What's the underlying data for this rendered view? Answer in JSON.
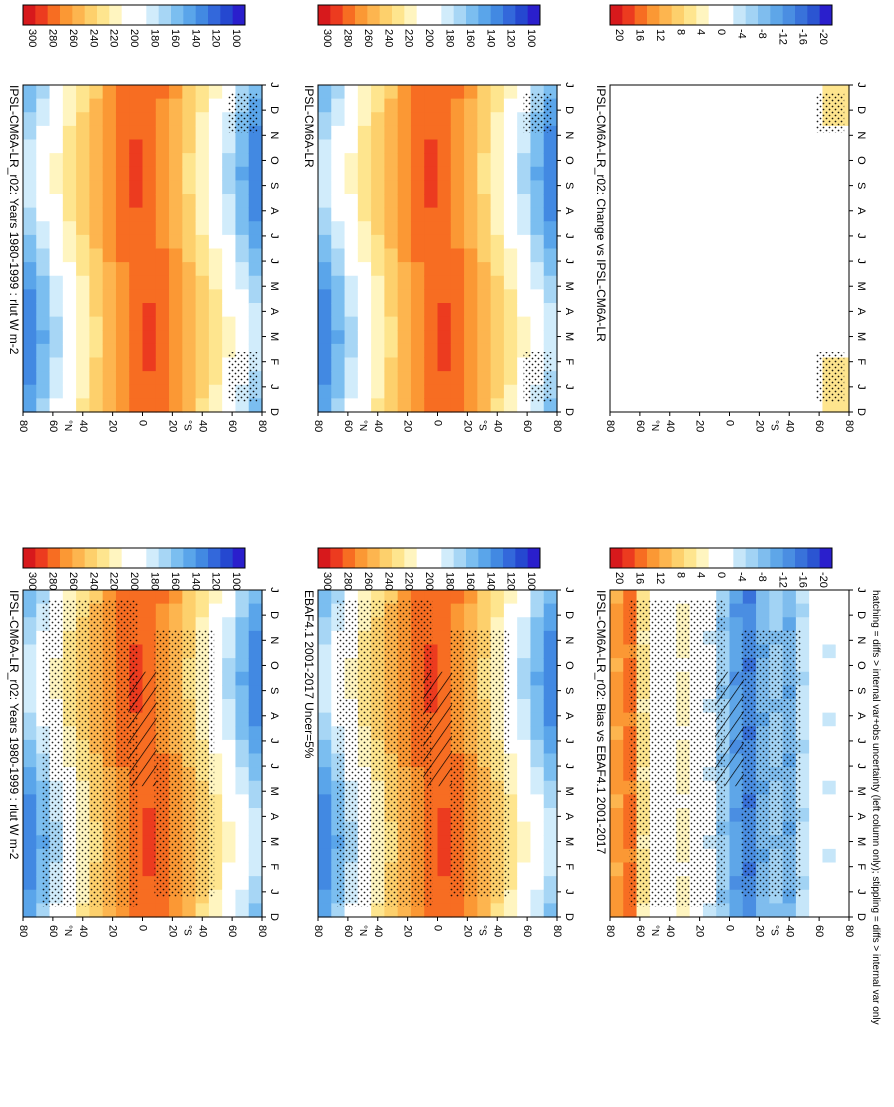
{
  "footer": "hatching = diffs > internal var+obs uncertainty (left column only); stippling = diffs > internal var only",
  "chart_data": [
    {
      "type": "heatmap",
      "title": "IPSL-CM6A-LR_r02: Years 1980-1999 : rlut W m-2",
      "x_ticks": [
        "D",
        "J",
        "F",
        "M",
        "A",
        "M",
        "J",
        "J",
        "A",
        "S",
        "O",
        "N",
        "D",
        "J"
      ],
      "y_ticks": [
        "80",
        "60",
        "40",
        "20",
        "0",
        "20",
        "40",
        "60",
        "80"
      ],
      "y_hemisphere_labels": [
        "°N",
        "°S"
      ],
      "colorbar": [
        "300",
        "280",
        "260",
        "240",
        "220",
        "200",
        "180",
        "160",
        "140",
        "120",
        "100"
      ],
      "palette": "absolute",
      "stippling": "dense",
      "hatching": true
    },
    {
      "type": "heatmap",
      "title": "EBAF4.1 2001-2017 Uncer=5%",
      "x_ticks": [
        "D",
        "J",
        "F",
        "M",
        "A",
        "M",
        "J",
        "J",
        "A",
        "S",
        "O",
        "N",
        "D",
        "J"
      ],
      "y_ticks": [
        "80",
        "60",
        "40",
        "20",
        "0",
        "20",
        "40",
        "60",
        "80"
      ],
      "y_hemisphere_labels": [
        "°N",
        "°S"
      ],
      "colorbar": [
        "300",
        "280",
        "260",
        "240",
        "220",
        "200",
        "180",
        "160",
        "140",
        "120",
        "100"
      ],
      "palette": "absolute",
      "stippling": "dense",
      "hatching": true
    },
    {
      "type": "heatmap",
      "title": "IPSL-CM6A-LR_r02: Bias vs EBAF4.1 2001-2017",
      "x_ticks": [
        "D",
        "J",
        "F",
        "M",
        "A",
        "M",
        "J",
        "J",
        "A",
        "S",
        "O",
        "N",
        "D",
        "J"
      ],
      "y_ticks": [
        "80",
        "60",
        "40",
        "20",
        "0",
        "20",
        "40",
        "60",
        "80"
      ],
      "y_hemisphere_labels": [
        "°N",
        "°S"
      ],
      "colorbar": [
        "20",
        "16",
        "12",
        "8",
        "4",
        "0",
        "-4",
        "-8",
        "-12",
        "-16",
        "-20"
      ],
      "palette": "diff",
      "stippling": "dense",
      "hatching": true
    },
    {
      "type": "heatmap",
      "title": "IPSL-CM6A-LR_r02: Years 1980-1999 : rlut W m-2",
      "x_ticks": [
        "D",
        "J",
        "F",
        "M",
        "A",
        "M",
        "J",
        "J",
        "A",
        "S",
        "O",
        "N",
        "D",
        "J"
      ],
      "y_ticks": [
        "80",
        "60",
        "40",
        "20",
        "0",
        "20",
        "40",
        "60",
        "80"
      ],
      "y_hemisphere_labels": [
        "°N",
        "°S"
      ],
      "colorbar": [
        "300",
        "280",
        "260",
        "240",
        "220",
        "200",
        "180",
        "160",
        "140",
        "120",
        "100"
      ],
      "palette": "absolute",
      "stippling": "sparse",
      "hatching": false
    },
    {
      "type": "heatmap",
      "title": "IPSL-CM6A-LR",
      "x_ticks": [
        "D",
        "J",
        "F",
        "M",
        "A",
        "M",
        "J",
        "J",
        "A",
        "S",
        "O",
        "N",
        "D",
        "J"
      ],
      "y_ticks": [
        "80",
        "60",
        "40",
        "20",
        "0",
        "20",
        "40",
        "60",
        "80"
      ],
      "y_hemisphere_labels": [
        "°N",
        "°S"
      ],
      "colorbar": [
        "300",
        "280",
        "260",
        "240",
        "220",
        "200",
        "180",
        "160",
        "140",
        "120",
        "100"
      ],
      "palette": "absolute",
      "stippling": "sparse",
      "hatching": false
    },
    {
      "type": "heatmap",
      "title": "IPSL-CM6A-LR_r02: Change vs IPSL-CM6A-LR",
      "x_ticks": [
        "D",
        "J",
        "F",
        "M",
        "A",
        "M",
        "J",
        "J",
        "A",
        "S",
        "O",
        "N",
        "D",
        "J"
      ],
      "y_ticks": [
        "80",
        "60",
        "40",
        "20",
        "0",
        "20",
        "40",
        "60",
        "80"
      ],
      "y_hemisphere_labels": [
        "°N",
        "°S"
      ],
      "colorbar": [
        "20",
        "16",
        "12",
        "8",
        "4",
        "0",
        "-4",
        "-8",
        "-12",
        "-16",
        "-20"
      ],
      "palette": "change",
      "stippling": "sparse",
      "hatching": false
    }
  ]
}
